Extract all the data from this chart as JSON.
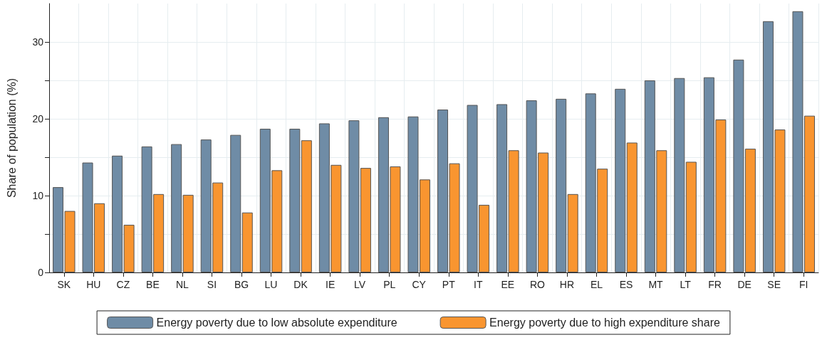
{
  "chart_data": {
    "type": "bar",
    "ylabel": "Share of population (%)",
    "categories": [
      "SK",
      "HU",
      "CZ",
      "BE",
      "NL",
      "SI",
      "BG",
      "LU",
      "DK",
      "IE",
      "LV",
      "PL",
      "CY",
      "PT",
      "IT",
      "EE",
      "RO",
      "HR",
      "EL",
      "ES",
      "MT",
      "LT",
      "FR",
      "DE",
      "SE",
      "FI"
    ],
    "series": [
      {
        "name": "Energy poverty due to low absolute expenditure",
        "color": "#6f8ca6",
        "values": [
          11.1,
          14.3,
          15.2,
          16.4,
          16.7,
          17.3,
          17.9,
          18.7,
          18.7,
          19.4,
          19.8,
          20.2,
          20.3,
          21.2,
          21.8,
          21.9,
          22.4,
          22.6,
          23.3,
          23.9,
          25.0,
          25.3,
          25.4,
          27.7,
          32.7,
          34.0
        ]
      },
      {
        "name": "Energy poverty due to high expenditure share",
        "color": "#f99530",
        "values": [
          8.0,
          9.0,
          6.2,
          10.2,
          10.1,
          11.7,
          7.8,
          13.3,
          17.2,
          14.0,
          13.6,
          13.8,
          12.1,
          14.2,
          8.8,
          15.9,
          15.6,
          10.2,
          13.5,
          16.9,
          15.9,
          14.4,
          19.9,
          16.1,
          18.6,
          20.4
        ]
      }
    ],
    "ylim": [
      0,
      35
    ],
    "yticks": [
      0,
      {
        "value": 5,
        "label": null
      },
      10,
      {
        "value": 15,
        "label": null
      },
      20,
      {
        "value": 25,
        "label": null
      },
      30
    ],
    "grid": true,
    "legend": "bottom"
  }
}
